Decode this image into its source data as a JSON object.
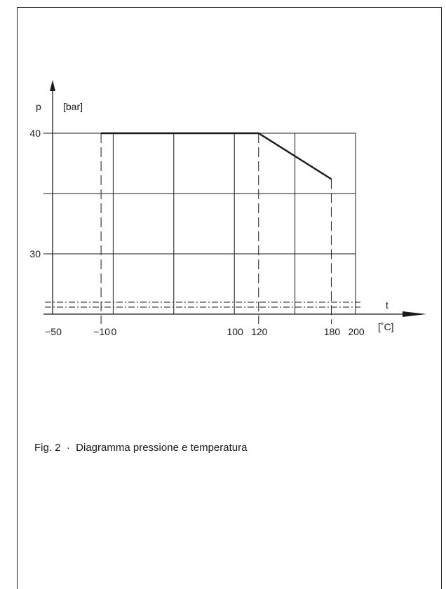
{
  "chart_data": {
    "type": "line",
    "ylabel": "p",
    "yunit": "[bar]",
    "xlabel": "t",
    "xunit": "[˚C]",
    "x_ticks": [
      -50,
      -10,
      0,
      100,
      120,
      180,
      200
    ],
    "y_ticks": [
      30,
      40
    ],
    "y_gridlines": [
      30,
      35,
      40
    ],
    "x_gridlines": [
      0,
      50,
      100,
      150,
      200
    ],
    "x_dashed_markers": [
      -10,
      120,
      180
    ],
    "xlim": [
      -50,
      200
    ],
    "ylim": [
      25,
      40
    ],
    "grid": true,
    "series": [
      {
        "x": [
          -10,
          120,
          180
        ],
        "y": [
          40,
          40,
          36.2
        ]
      }
    ]
  },
  "caption": "Fig. 2  ·  Diagramma pressione e temperatura"
}
